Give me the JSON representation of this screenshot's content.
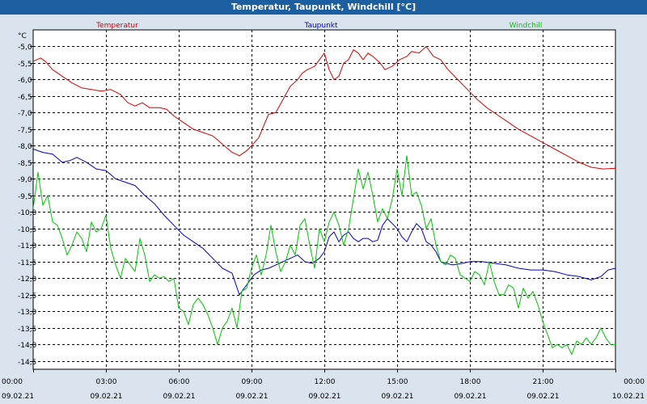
{
  "header": {
    "title": "Temperatur, Taupunkt, Windchill [°C]"
  },
  "chart_data": {
    "type": "line",
    "title": "Temperatur, Taupunkt, Windchill [°C]",
    "ylabel": "°C",
    "xlabel": "",
    "ylim": [
      -14.75,
      -4.5
    ],
    "xlim": [
      0,
      24
    ],
    "grid": true,
    "legend_position": "top",
    "colors": {
      "Temperatur": "#dd0000",
      "Taupunkt": "#0000c8",
      "Windchill": "#00c800",
      "background": "#ffffff",
      "window": "#d9e4ee",
      "titlebar": "#1b5fa0"
    },
    "y_ticks": [
      {
        "v": -5.0,
        "label": "-5,0"
      },
      {
        "v": -5.5,
        "label": "-5,5"
      },
      {
        "v": -6.0,
        "label": "-6,0"
      },
      {
        "v": -6.5,
        "label": "-6,5"
      },
      {
        "v": -7.0,
        "label": "-7,0"
      },
      {
        "v": -7.5,
        "label": "-7,5"
      },
      {
        "v": -8.0,
        "label": "-8,0"
      },
      {
        "v": -8.5,
        "label": "-8,5"
      },
      {
        "v": -9.0,
        "label": "-9,0"
      },
      {
        "v": -9.5,
        "label": "-9,5"
      },
      {
        "v": -10.0,
        "label": "-10,0"
      },
      {
        "v": -10.5,
        "label": "-10,5"
      },
      {
        "v": -11.0,
        "label": "-11,0"
      },
      {
        "v": -11.5,
        "label": "-11,5"
      },
      {
        "v": -12.0,
        "label": "-12,0"
      },
      {
        "v": -12.5,
        "label": "-12,5"
      },
      {
        "v": -13.0,
        "label": "-13,0"
      },
      {
        "v": -13.5,
        "label": "-13,5"
      },
      {
        "v": -14.0,
        "label": "-14,0"
      },
      {
        "v": -14.5,
        "label": "-14,5"
      }
    ],
    "x_ticks": [
      {
        "h": 0,
        "time": "00:00",
        "date": "09.02.21"
      },
      {
        "h": 3,
        "time": "03:00",
        "date": "09.02.21"
      },
      {
        "h": 6,
        "time": "06:00",
        "date": "09.02.21"
      },
      {
        "h": 9,
        "time": "09:00",
        "date": "09.02.21"
      },
      {
        "h": 12,
        "time": "12:00",
        "date": "09.02.21"
      },
      {
        "h": 15,
        "time": "15:00",
        "date": "09.02.21"
      },
      {
        "h": 18,
        "time": "18:00",
        "date": "09.02.21"
      },
      {
        "h": 21,
        "time": "21:00",
        "date": "09.02.21"
      },
      {
        "h": 24,
        "time": "00:00",
        "date": "10.02.21"
      }
    ],
    "series": [
      {
        "name": "Temperatur",
        "color": "#dd0000",
        "points": [
          [
            0.0,
            -5.45
          ],
          [
            0.3,
            -5.35
          ],
          [
            0.5,
            -5.45
          ],
          [
            0.8,
            -5.7
          ],
          [
            1.2,
            -5.9
          ],
          [
            1.6,
            -6.1
          ],
          [
            2.0,
            -6.25
          ],
          [
            2.4,
            -6.3
          ],
          [
            2.8,
            -6.35
          ],
          [
            3.2,
            -6.3
          ],
          [
            3.6,
            -6.45
          ],
          [
            3.9,
            -6.7
          ],
          [
            4.2,
            -6.8
          ],
          [
            4.5,
            -6.7
          ],
          [
            4.8,
            -6.85
          ],
          [
            5.2,
            -6.85
          ],
          [
            5.5,
            -6.9
          ],
          [
            5.8,
            -7.1
          ],
          [
            6.2,
            -7.3
          ],
          [
            6.6,
            -7.5
          ],
          [
            7.0,
            -7.6
          ],
          [
            7.4,
            -7.7
          ],
          [
            7.8,
            -7.95
          ],
          [
            8.2,
            -8.2
          ],
          [
            8.5,
            -8.3
          ],
          [
            8.8,
            -8.15
          ],
          [
            9.0,
            -8.0
          ],
          [
            9.3,
            -7.75
          ],
          [
            9.5,
            -7.4
          ],
          [
            9.7,
            -7.05
          ],
          [
            10.0,
            -7.0
          ],
          [
            10.3,
            -6.6
          ],
          [
            10.6,
            -6.2
          ],
          [
            10.9,
            -6.0
          ],
          [
            11.1,
            -5.8
          ],
          [
            11.3,
            -5.7
          ],
          [
            11.6,
            -5.6
          ],
          [
            11.8,
            -5.4
          ],
          [
            12.0,
            -5.2
          ],
          [
            12.2,
            -5.7
          ],
          [
            12.4,
            -6.0
          ],
          [
            12.6,
            -5.9
          ],
          [
            12.8,
            -5.5
          ],
          [
            13.0,
            -5.4
          ],
          [
            13.2,
            -5.1
          ],
          [
            13.4,
            -5.2
          ],
          [
            13.6,
            -5.4
          ],
          [
            13.8,
            -5.2
          ],
          [
            14.0,
            -5.3
          ],
          [
            14.3,
            -5.5
          ],
          [
            14.5,
            -5.7
          ],
          [
            14.8,
            -5.6
          ],
          [
            15.1,
            -5.4
          ],
          [
            15.4,
            -5.3
          ],
          [
            15.6,
            -5.15
          ],
          [
            15.9,
            -5.2
          ],
          [
            16.2,
            -5.0
          ],
          [
            16.5,
            -5.3
          ],
          [
            16.8,
            -5.4
          ],
          [
            17.1,
            -5.7
          ],
          [
            17.5,
            -6.0
          ],
          [
            17.9,
            -6.3
          ],
          [
            18.3,
            -6.6
          ],
          [
            18.7,
            -6.85
          ],
          [
            19.2,
            -7.1
          ],
          [
            19.6,
            -7.3
          ],
          [
            20.0,
            -7.5
          ],
          [
            20.5,
            -7.7
          ],
          [
            21.0,
            -7.9
          ],
          [
            21.5,
            -8.1
          ],
          [
            22.0,
            -8.3
          ],
          [
            22.5,
            -8.5
          ],
          [
            23.0,
            -8.65
          ],
          [
            23.5,
            -8.7
          ],
          [
            24.0,
            -8.68
          ]
        ]
      },
      {
        "name": "Taupunkt",
        "color": "#0000c8",
        "points": [
          [
            0.0,
            -8.1
          ],
          [
            0.4,
            -8.2
          ],
          [
            0.8,
            -8.25
          ],
          [
            1.2,
            -8.5
          ],
          [
            1.5,
            -8.45
          ],
          [
            1.8,
            -8.35
          ],
          [
            2.2,
            -8.5
          ],
          [
            2.6,
            -8.7
          ],
          [
            3.0,
            -8.75
          ],
          [
            3.4,
            -9.0
          ],
          [
            3.8,
            -9.1
          ],
          [
            4.2,
            -9.2
          ],
          [
            4.6,
            -9.5
          ],
          [
            5.0,
            -9.75
          ],
          [
            5.4,
            -10.1
          ],
          [
            5.8,
            -10.4
          ],
          [
            6.2,
            -10.7
          ],
          [
            6.6,
            -10.9
          ],
          [
            7.0,
            -11.1
          ],
          [
            7.4,
            -11.4
          ],
          [
            7.8,
            -11.7
          ],
          [
            8.2,
            -11.85
          ],
          [
            8.5,
            -12.5
          ],
          [
            8.8,
            -12.2
          ],
          [
            9.1,
            -11.9
          ],
          [
            9.4,
            -11.75
          ],
          [
            9.7,
            -11.7
          ],
          [
            10.0,
            -11.6
          ],
          [
            10.3,
            -11.5
          ],
          [
            10.6,
            -11.4
          ],
          [
            10.9,
            -11.3
          ],
          [
            11.2,
            -11.5
          ],
          [
            11.5,
            -11.55
          ],
          [
            11.8,
            -11.4
          ],
          [
            12.0,
            -11.2
          ],
          [
            12.2,
            -10.75
          ],
          [
            12.4,
            -10.6
          ],
          [
            12.6,
            -10.9
          ],
          [
            12.8,
            -10.7
          ],
          [
            13.0,
            -10.6
          ],
          [
            13.2,
            -10.8
          ],
          [
            13.4,
            -10.9
          ],
          [
            13.6,
            -10.8
          ],
          [
            13.8,
            -10.8
          ],
          [
            14.0,
            -10.9
          ],
          [
            14.2,
            -10.85
          ],
          [
            14.4,
            -10.4
          ],
          [
            14.6,
            -10.2
          ],
          [
            14.8,
            -10.35
          ],
          [
            15.0,
            -10.5
          ],
          [
            15.2,
            -10.75
          ],
          [
            15.4,
            -10.9
          ],
          [
            15.6,
            -10.6
          ],
          [
            15.8,
            -10.35
          ],
          [
            16.0,
            -10.5
          ],
          [
            16.2,
            -10.9
          ],
          [
            16.4,
            -11.0
          ],
          [
            16.6,
            -11.2
          ],
          [
            16.8,
            -11.5
          ],
          [
            17.0,
            -11.55
          ],
          [
            17.3,
            -11.6
          ],
          [
            17.7,
            -11.55
          ],
          [
            18.0,
            -11.5
          ],
          [
            18.5,
            -11.5
          ],
          [
            19.0,
            -11.55
          ],
          [
            19.5,
            -11.6
          ],
          [
            20.0,
            -11.7
          ],
          [
            20.5,
            -11.75
          ],
          [
            21.0,
            -11.75
          ],
          [
            21.5,
            -11.8
          ],
          [
            22.0,
            -11.9
          ],
          [
            22.5,
            -11.95
          ],
          [
            23.0,
            -12.05
          ],
          [
            23.4,
            -11.95
          ],
          [
            23.7,
            -11.75
          ],
          [
            24.0,
            -11.7
          ]
        ]
      },
      {
        "name": "Windchill",
        "color": "#00c800",
        "points": [
          [
            0.0,
            -9.9
          ],
          [
            0.2,
            -8.8
          ],
          [
            0.4,
            -9.8
          ],
          [
            0.6,
            -9.5
          ],
          [
            0.8,
            -10.3
          ],
          [
            1.0,
            -10.4
          ],
          [
            1.2,
            -10.8
          ],
          [
            1.4,
            -11.3
          ],
          [
            1.6,
            -11.0
          ],
          [
            1.8,
            -10.6
          ],
          [
            2.0,
            -10.8
          ],
          [
            2.2,
            -11.2
          ],
          [
            2.4,
            -10.3
          ],
          [
            2.6,
            -10.6
          ],
          [
            2.8,
            -10.5
          ],
          [
            3.0,
            -10.1
          ],
          [
            3.2,
            -11.1
          ],
          [
            3.4,
            -11.6
          ],
          [
            3.6,
            -12.0
          ],
          [
            3.8,
            -11.4
          ],
          [
            4.0,
            -11.6
          ],
          [
            4.2,
            -11.8
          ],
          [
            4.4,
            -10.8
          ],
          [
            4.6,
            -11.3
          ],
          [
            4.8,
            -12.1
          ],
          [
            5.0,
            -11.9
          ],
          [
            5.2,
            -12.0
          ],
          [
            5.4,
            -11.95
          ],
          [
            5.6,
            -12.1
          ],
          [
            5.8,
            -12.0
          ],
          [
            6.0,
            -12.9
          ],
          [
            6.2,
            -13.0
          ],
          [
            6.4,
            -13.4
          ],
          [
            6.6,
            -12.8
          ],
          [
            6.8,
            -12.6
          ],
          [
            7.0,
            -12.8
          ],
          [
            7.2,
            -13.1
          ],
          [
            7.4,
            -13.5
          ],
          [
            7.6,
            -14.0
          ],
          [
            7.8,
            -13.5
          ],
          [
            8.0,
            -13.3
          ],
          [
            8.2,
            -12.9
          ],
          [
            8.4,
            -13.5
          ],
          [
            8.6,
            -12.4
          ],
          [
            8.8,
            -12.3
          ],
          [
            9.0,
            -11.7
          ],
          [
            9.2,
            -11.3
          ],
          [
            9.4,
            -11.9
          ],
          [
            9.6,
            -11.3
          ],
          [
            9.8,
            -10.4
          ],
          [
            10.0,
            -11.2
          ],
          [
            10.2,
            -11.8
          ],
          [
            10.4,
            -11.5
          ],
          [
            10.6,
            -11.0
          ],
          [
            10.8,
            -11.3
          ],
          [
            11.0,
            -10.4
          ],
          [
            11.2,
            -10.2
          ],
          [
            11.4,
            -11.0
          ],
          [
            11.6,
            -11.7
          ],
          [
            11.8,
            -10.5
          ],
          [
            12.0,
            -10.9
          ],
          [
            12.2,
            -10.3
          ],
          [
            12.4,
            -10.0
          ],
          [
            12.6,
            -10.4
          ],
          [
            12.8,
            -11.0
          ],
          [
            13.0,
            -10.5
          ],
          [
            13.2,
            -9.6
          ],
          [
            13.4,
            -8.7
          ],
          [
            13.6,
            -9.3
          ],
          [
            13.8,
            -8.8
          ],
          [
            14.0,
            -9.5
          ],
          [
            14.2,
            -10.3
          ],
          [
            14.4,
            -9.9
          ],
          [
            14.6,
            -10.2
          ],
          [
            14.8,
            -9.6
          ],
          [
            15.0,
            -8.7
          ],
          [
            15.2,
            -9.5
          ],
          [
            15.4,
            -8.3
          ],
          [
            15.6,
            -9.5
          ],
          [
            15.8,
            -9.4
          ],
          [
            16.0,
            -9.8
          ],
          [
            16.2,
            -10.5
          ],
          [
            16.4,
            -10.2
          ],
          [
            16.6,
            -11.0
          ],
          [
            16.8,
            -11.5
          ],
          [
            17.0,
            -11.6
          ],
          [
            17.2,
            -11.3
          ],
          [
            17.4,
            -11.4
          ],
          [
            17.6,
            -11.9
          ],
          [
            17.8,
            -12.0
          ],
          [
            18.0,
            -12.1
          ],
          [
            18.2,
            -11.8
          ],
          [
            18.4,
            -11.9
          ],
          [
            18.6,
            -12.2
          ],
          [
            18.8,
            -11.5
          ],
          [
            19.0,
            -12.1
          ],
          [
            19.2,
            -12.5
          ],
          [
            19.4,
            -12.5
          ],
          [
            19.6,
            -12.2
          ],
          [
            19.8,
            -12.3
          ],
          [
            20.0,
            -12.9
          ],
          [
            20.2,
            -12.3
          ],
          [
            20.4,
            -12.6
          ],
          [
            20.6,
            -12.4
          ],
          [
            20.8,
            -12.8
          ],
          [
            21.0,
            -13.3
          ],
          [
            21.2,
            -13.7
          ],
          [
            21.4,
            -14.1
          ],
          [
            21.6,
            -14.0
          ],
          [
            21.8,
            -14.1
          ],
          [
            22.0,
            -14.0
          ],
          [
            22.2,
            -14.3
          ],
          [
            22.4,
            -13.9
          ],
          [
            22.6,
            -14.0
          ],
          [
            22.8,
            -13.8
          ],
          [
            23.0,
            -14.0
          ],
          [
            23.2,
            -13.8
          ],
          [
            23.4,
            -13.5
          ],
          [
            23.6,
            -13.8
          ],
          [
            23.8,
            -14.0
          ],
          [
            24.0,
            -14.0
          ]
        ]
      }
    ]
  }
}
